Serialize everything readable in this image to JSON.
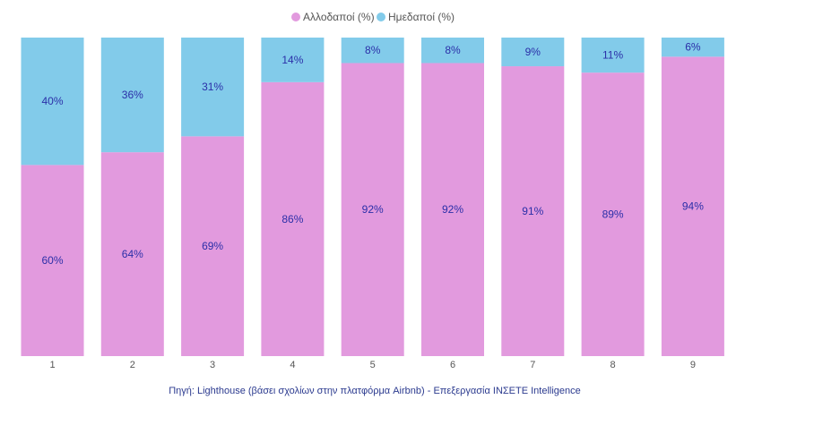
{
  "chart_data": {
    "type": "bar",
    "stacked": true,
    "normalized_percent": true,
    "categories": [
      "1",
      "2",
      "3",
      "4",
      "5",
      "6",
      "7",
      "8",
      "9"
    ],
    "series": [
      {
        "name": "Αλλοδαποί (%)",
        "color": "#e29ade",
        "values": [
          60,
          64,
          69,
          86,
          92,
          92,
          91,
          89,
          94
        ],
        "labels": [
          "60%",
          "64%",
          "69%",
          "86%",
          "92%",
          "92%",
          "91%",
          "89%",
          "94%"
        ]
      },
      {
        "name": "Ημεδαποί (%)",
        "color": "#82cbea",
        "values": [
          40,
          36,
          31,
          14,
          8,
          8,
          9,
          11,
          6
        ],
        "labels": [
          "40%",
          "36%",
          "31%",
          "14%",
          "8%",
          "8%",
          "9%",
          "11%",
          "6%"
        ]
      }
    ],
    "ylim": [
      0,
      100
    ],
    "legend_position": "top-center",
    "grid": false,
    "xlabel": "",
    "ylabel": ""
  },
  "source_note": "Πηγή: Lighthouse (βάσει σχολίων στην πλατφόρμα Airbnb) - Επεξεργασία INΣΕΤΕ Intelligence"
}
